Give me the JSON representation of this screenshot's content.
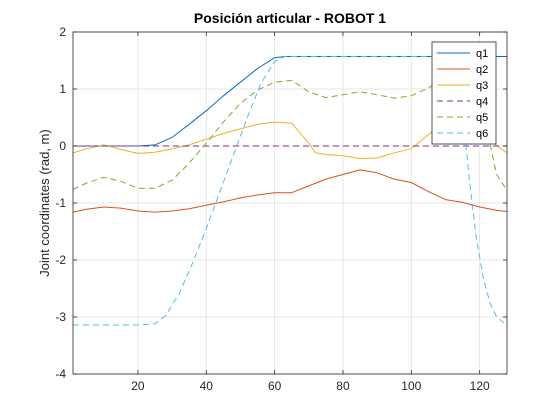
{
  "chart_data": {
    "type": "line",
    "title": "Posición articular - ROBOT 1",
    "xlabel": "",
    "ylabel": "Joint coordinates (rad, m)",
    "xlim": [
      1,
      128
    ],
    "ylim": [
      -4,
      2
    ],
    "xticks": [
      20,
      40,
      60,
      80,
      100,
      120
    ],
    "yticks": [
      -4,
      -3,
      -2,
      -1,
      0,
      1,
      2
    ],
    "xtick_labels": [
      "20",
      "40",
      "60",
      "80",
      "100",
      "120"
    ],
    "ytick_labels": [
      "-4",
      "-3",
      "-2",
      "-1",
      "0",
      "1",
      "2"
    ],
    "grid": true,
    "legend_position": "top-right",
    "series": [
      {
        "name": "q1",
        "color": "#0072BD",
        "dash": "solid",
        "x": [
          1,
          5,
          10,
          15,
          20,
          25,
          30,
          35,
          40,
          45,
          50,
          55,
          60,
          63,
          70,
          80,
          90,
          100,
          110,
          115,
          118,
          122,
          125,
          128
        ],
        "y": [
          0,
          0,
          0,
          0,
          0,
          0.02,
          0.15,
          0.38,
          0.62,
          0.88,
          1.12,
          1.36,
          1.55,
          1.57,
          1.57,
          1.57,
          1.57,
          1.57,
          1.57,
          1.57,
          1.57,
          1.57,
          1.57,
          1.57
        ]
      },
      {
        "name": "q2",
        "color": "#D95319",
        "dash": "solid",
        "x": [
          1,
          5,
          10,
          15,
          20,
          25,
          30,
          35,
          40,
          45,
          50,
          55,
          60,
          65,
          70,
          75,
          80,
          85,
          90,
          95,
          100,
          105,
          110,
          115,
          120,
          125,
          128
        ],
        "y": [
          -1.16,
          -1.11,
          -1.07,
          -1.09,
          -1.14,
          -1.16,
          -1.14,
          -1.1,
          -1.04,
          -0.98,
          -0.91,
          -0.86,
          -0.82,
          -0.82,
          -0.7,
          -0.58,
          -0.5,
          -0.42,
          -0.47,
          -0.58,
          -0.64,
          -0.8,
          -0.94,
          -0.99,
          -1.07,
          -1.13,
          -1.15
        ]
      },
      {
        "name": "q3",
        "color": "#EDB120",
        "dash": "solid",
        "x": [
          1,
          5,
          10,
          15,
          20,
          25,
          30,
          35,
          40,
          45,
          50,
          55,
          60,
          65,
          70,
          72,
          75,
          80,
          85,
          90,
          95,
          100,
          105,
          110,
          115,
          120,
          125,
          128
        ],
        "y": [
          -0.12,
          -0.05,
          0.02,
          -0.06,
          -0.13,
          -0.11,
          -0.05,
          0.02,
          0.12,
          0.22,
          0.3,
          0.38,
          0.42,
          0.4,
          0.05,
          -0.12,
          -0.15,
          -0.17,
          -0.22,
          -0.21,
          -0.12,
          -0.05,
          0.2,
          0.45,
          0.56,
          0.42,
          0.0,
          -0.12
        ]
      },
      {
        "name": "q4",
        "color": "#7E2F8E",
        "dash": "dashed",
        "x": [
          1,
          128
        ],
        "y": [
          0,
          0
        ]
      },
      {
        "name": "q5",
        "color": "#77AC30",
        "dash": "dashed",
        "x": [
          1,
          5,
          10,
          15,
          20,
          25,
          30,
          35,
          40,
          45,
          50,
          55,
          60,
          65,
          70,
          75,
          80,
          85,
          90,
          95,
          100,
          105,
          110,
          115,
          120,
          125,
          128
        ],
        "y": [
          -0.76,
          -0.65,
          -0.55,
          -0.62,
          -0.74,
          -0.74,
          -0.6,
          -0.3,
          0.05,
          0.42,
          0.75,
          0.98,
          1.12,
          1.15,
          0.95,
          0.85,
          0.9,
          0.95,
          0.9,
          0.84,
          0.88,
          1.02,
          1.18,
          1.35,
          0.85,
          -0.5,
          -0.78
        ]
      },
      {
        "name": "q6",
        "color": "#4DBEEE",
        "dash": "dashed",
        "x": [
          1,
          5,
          10,
          15,
          20,
          25,
          28,
          32,
          36,
          40,
          44,
          48,
          52,
          56,
          60,
          63,
          70,
          80,
          90,
          100,
          110,
          113,
          115,
          117,
          119,
          121,
          123,
          125,
          128
        ],
        "y": [
          -3.14,
          -3.14,
          -3.14,
          -3.14,
          -3.14,
          -3.12,
          -2.98,
          -2.6,
          -2.05,
          -1.45,
          -0.8,
          -0.15,
          0.5,
          1.1,
          1.48,
          1.57,
          1.57,
          1.57,
          1.57,
          1.57,
          1.57,
          1.5,
          0.6,
          -0.6,
          -1.6,
          -2.3,
          -2.75,
          -3.0,
          -3.14
        ]
      }
    ]
  }
}
